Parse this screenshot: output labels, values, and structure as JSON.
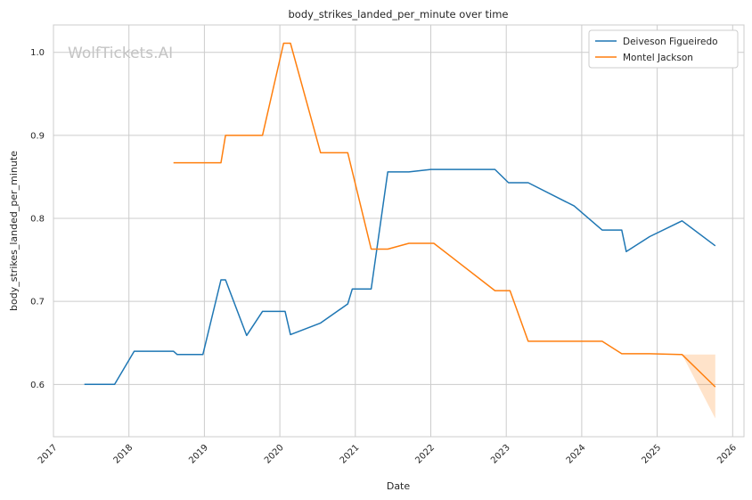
{
  "chart_data": {
    "type": "line",
    "title": "body_strikes_landed_per_minute over time",
    "xlabel": "Date",
    "ylabel": "body_strikes_landed_per_minute",
    "watermark": "WolfTickets.AI",
    "xlim": [
      2017.0,
      2026.15
    ],
    "ylim": [
      0.537,
      1.033
    ],
    "xticks": [
      "2017",
      "2018",
      "2019",
      "2020",
      "2021",
      "2022",
      "2023",
      "2024",
      "2025",
      "2026"
    ],
    "yticks": [
      "0.6",
      "0.7",
      "0.8",
      "0.9",
      "1.0"
    ],
    "grid": true,
    "legend_position": "top-right",
    "series": [
      {
        "name": "Deiveson Figueiredo",
        "color": "#1f77b4",
        "x": [
          2017.41,
          2017.81,
          2018.07,
          2018.59,
          2018.64,
          2018.98,
          2019.22,
          2019.28,
          2019.56,
          2019.77,
          2020.07,
          2020.14,
          2020.54,
          2020.9,
          2020.96,
          2021.21,
          2021.43,
          2021.71,
          2022.0,
          2022.85,
          2023.03,
          2023.29,
          2023.9,
          2024.27,
          2024.53,
          2024.59,
          2024.9,
          2025.33,
          2025.77
        ],
        "y": [
          0.6,
          0.6,
          0.64,
          0.64,
          0.636,
          0.636,
          0.726,
          0.726,
          0.659,
          0.688,
          0.688,
          0.66,
          0.674,
          0.697,
          0.715,
          0.715,
          0.856,
          0.856,
          0.859,
          0.859,
          0.843,
          0.843,
          0.815,
          0.786,
          0.786,
          0.76,
          0.778,
          0.797,
          0.767
        ]
      },
      {
        "name": "Montel Jackson",
        "color": "#ff7f0e",
        "x": [
          2018.59,
          2019.22,
          2019.28,
          2019.77,
          2020.05,
          2020.14,
          2020.54,
          2020.9,
          2021.21,
          2021.43,
          2021.71,
          2022.04,
          2022.85,
          2023.05,
          2023.29,
          2024.27,
          2024.53,
          2024.9,
          2025.33,
          2025.77
        ],
        "y": [
          0.867,
          0.867,
          0.9,
          0.9,
          1.011,
          1.011,
          0.879,
          0.879,
          0.763,
          0.763,
          0.77,
          0.77,
          0.713,
          0.713,
          0.652,
          0.652,
          0.637,
          0.637,
          0.636,
          0.597
        ],
        "band": {
          "x": [
            2025.33,
            2025.77
          ],
          "upper": [
            0.636,
            0.636
          ],
          "lower": [
            0.636,
            0.559
          ]
        }
      }
    ]
  }
}
